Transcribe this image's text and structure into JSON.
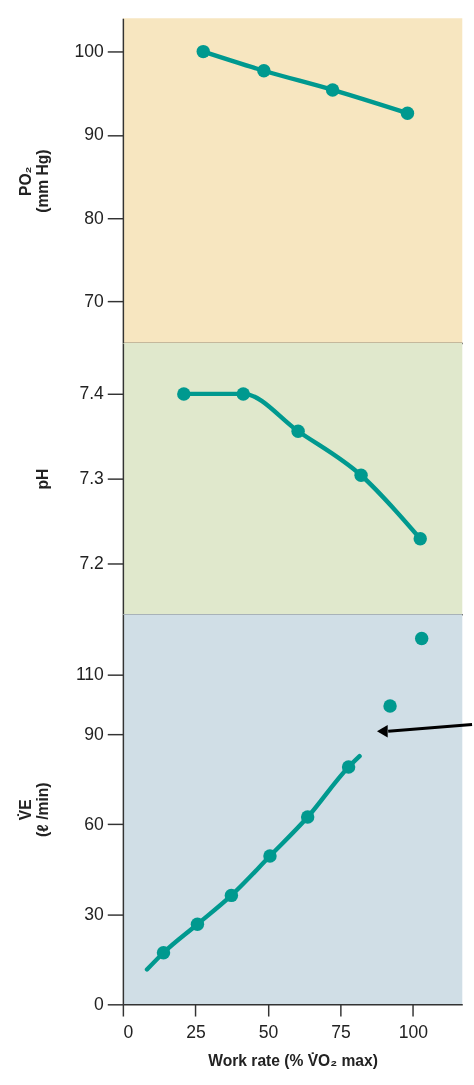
{
  "chart_data": [
    {
      "type": "line",
      "ylabel": "PO₂\n(mm Hg)",
      "xlim": [
        0,
        117
      ],
      "ylim": [
        65,
        104
      ],
      "yticks": [
        70,
        80,
        90,
        100
      ],
      "tick_labels": "y",
      "grid": false,
      "marker": "circle",
      "series": [
        {
          "color": "#00998f",
          "x": [
            27.7,
            48.6,
            72.3,
            98.1
          ],
          "values": [
            100,
            97.7,
            95.4,
            92.6
          ]
        }
      ]
    },
    {
      "type": "line",
      "ylabel": "pH",
      "xlim": [
        0,
        117
      ],
      "ylim": [
        7.14,
        7.46
      ],
      "yticks": [
        {
          "value": 7.2,
          "label": "7.2"
        },
        {
          "value": 7.3,
          "label": "7.3"
        },
        {
          "value": 7.4,
          "label": "7.4"
        }
      ],
      "tick_labels": "y",
      "grid": false,
      "marker": "circle",
      "series": [
        {
          "color": "#00998f",
          "x": [
            21.0,
            41.5,
            60.4,
            82.1,
            102.5
          ],
          "values": [
            7.4,
            7.4,
            7.356,
            7.304,
            7.229
          ]
        }
      ]
    },
    {
      "type": "line",
      "ylabel": "V̇E\n(ℓ /min)",
      "xlabel": "Work rate (% V̇O₂ max)",
      "xlim": [
        0,
        117
      ],
      "ylim": [
        0,
        130
      ],
      "xticks": [
        0,
        25,
        50,
        75,
        100
      ],
      "yticks": [
        0,
        30,
        60,
        90,
        110
      ],
      "grid": false,
      "series": [
        {
          "type": "line",
          "marker": "none",
          "color": "#00998f",
          "x": [
            8.3,
            14.0,
            25.7,
            37.4,
            50.7,
            63.7,
            77.8,
            81.6
          ],
          "values": [
            11.6,
            17.2,
            26.7,
            36.3,
            49.4,
            62.4,
            79.1,
            82.7
          ]
        },
        {
          "type": "scatter",
          "marker": "circle",
          "color": "#00998f",
          "x": [
            14.0,
            25.7,
            37.4,
            50.7,
            63.7,
            77.8,
            92.1,
            103.0
          ],
          "values": [
            17.2,
            26.7,
            36.3,
            49.4,
            62.4,
            79.1,
            99.4,
            121.9
          ]
        }
      ]
    }
  ]
}
